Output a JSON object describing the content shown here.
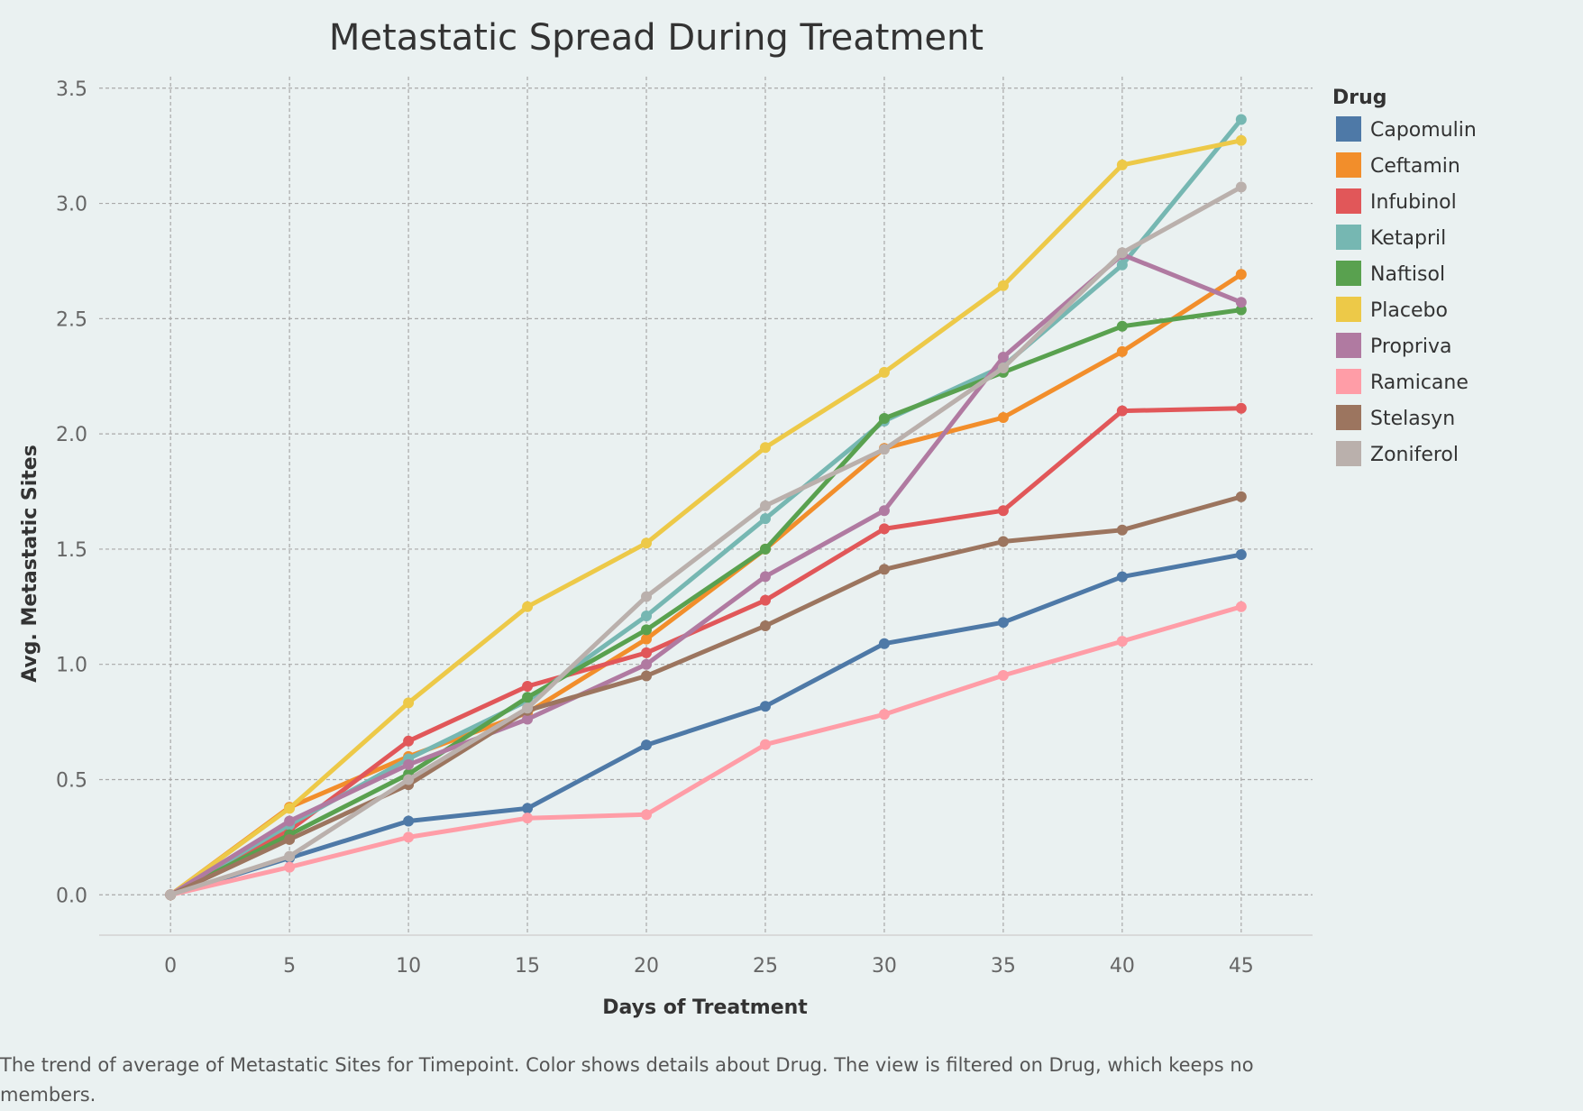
{
  "caption": "The trend of average of Metastatic Sites for Timepoint.  Color shows details about Drug. The view is filtered on Drug, which keeps no members.",
  "chart_data": {
    "type": "line",
    "title": "Metastatic Spread During Treatment",
    "xlabel": "Days of Treatment",
    "ylabel": "Avg. Metastatic Sites",
    "xlim": [
      -3,
      48
    ],
    "ylim": [
      -0.175,
      3.55
    ],
    "xticks": [
      0,
      5,
      10,
      15,
      20,
      25,
      30,
      35,
      40,
      45
    ],
    "yticks": [
      0.0,
      0.5,
      1.0,
      1.5,
      2.0,
      2.5,
      3.0,
      3.5
    ],
    "ytick_labels": [
      "0.0",
      "0.5",
      "1.0",
      "1.5",
      "2.0",
      "2.5",
      "3.0",
      "3.5"
    ],
    "grid": true,
    "legend_title": "Drug",
    "legend_placement": "right",
    "x": [
      0,
      5,
      10,
      15,
      20,
      25,
      30,
      35,
      40,
      45
    ],
    "series": [
      {
        "name": "Capomulin",
        "color": "#4e79a7",
        "values": [
          0.0,
          0.16,
          0.32,
          0.375,
          0.65,
          0.818,
          1.09,
          1.182,
          1.38,
          1.476
        ]
      },
      {
        "name": "Ceftamin",
        "color": "#f28e2b",
        "values": [
          0.0,
          0.38,
          0.6,
          0.79,
          1.11,
          1.5,
          1.937,
          2.071,
          2.357,
          2.692
        ]
      },
      {
        "name": "Infubinol",
        "color": "#e15759",
        "values": [
          0.0,
          0.28,
          0.667,
          0.905,
          1.05,
          1.278,
          1.588,
          1.667,
          2.1,
          2.111
        ]
      },
      {
        "name": "Ketapril",
        "color": "#76b7b2",
        "values": [
          0.0,
          0.304,
          0.59,
          0.842,
          1.21,
          1.632,
          2.056,
          2.294,
          2.733,
          3.364
        ]
      },
      {
        "name": "Naftisol",
        "color": "#59a14f",
        "values": [
          0.0,
          0.261,
          0.524,
          0.857,
          1.15,
          1.5,
          2.067,
          2.267,
          2.467,
          2.538
        ]
      },
      {
        "name": "Placebo",
        "color": "#edc948",
        "values": [
          0.0,
          0.375,
          0.833,
          1.25,
          1.526,
          1.941,
          2.267,
          2.643,
          3.167,
          3.273
        ]
      },
      {
        "name": "Propriva",
        "color": "#b07aa1",
        "values": [
          0.0,
          0.32,
          0.565,
          0.762,
          1.0,
          1.381,
          1.667,
          2.333,
          2.778,
          2.571
        ]
      },
      {
        "name": "Ramicane",
        "color": "#ff9da7",
        "values": [
          0.0,
          0.12,
          0.25,
          0.333,
          0.348,
          0.652,
          0.783,
          0.952,
          1.1,
          1.25
        ]
      },
      {
        "name": "Stelasyn",
        "color": "#9c755f",
        "values": [
          0.0,
          0.24,
          0.478,
          0.8,
          0.95,
          1.167,
          1.412,
          1.533,
          1.583,
          1.727
        ]
      },
      {
        "name": "Zoniferol",
        "color": "#bab0ac",
        "values": [
          0.0,
          0.167,
          0.5,
          0.81,
          1.294,
          1.688,
          1.933,
          2.286,
          2.786,
          3.071
        ]
      }
    ]
  }
}
